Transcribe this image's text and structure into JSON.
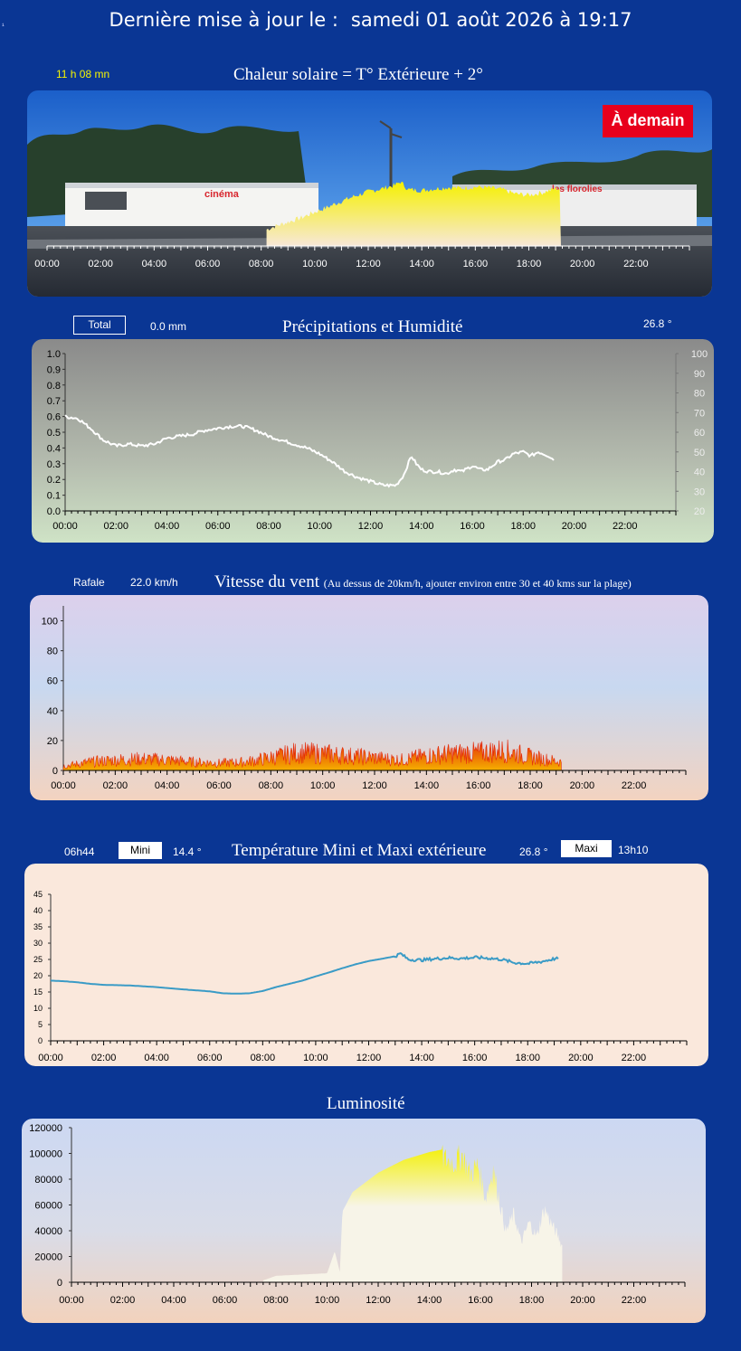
{
  "header": {
    "prefix": "Dernière mise à jour le :",
    "datetime": "samedi 01 août 2026 à 19:17"
  },
  "corner_mark": "¹",
  "hours": [
    "00:00",
    "02:00",
    "04:00",
    "06:00",
    "08:00",
    "10:00",
    "12:00",
    "14:00",
    "16:00",
    "18:00",
    "20:00",
    "22:00"
  ],
  "solar": {
    "title": "Chaleur solaire = T° Extérieure + 2°",
    "duration": "11 h 08 mn",
    "tomorrow_button": "À demain",
    "colors": {
      "fill_top": "#f5f000",
      "fill_bottom": "#f7e8d8",
      "sky": "#1f6fd6"
    }
  },
  "precip": {
    "title": "Précipitations et Humidité",
    "total_label": "Total",
    "total_value": "0.0 mm",
    "temp_value": "26.8 °",
    "chart_data": {
      "type": "line",
      "title": "Précipitations et Humidité",
      "y_left": {
        "min": 0,
        "max": 1,
        "step": 0.1,
        "ticks": [
          "0.0",
          "0.1",
          "0.2",
          "0.3",
          "0.4",
          "0.5",
          "0.6",
          "0.7",
          "0.8",
          "0.9",
          "1.0"
        ]
      },
      "y_right": {
        "min": 20,
        "max": 100,
        "step": 10,
        "ticks": [
          "20",
          "30",
          "40",
          "50",
          "60",
          "70",
          "80",
          "90",
          "100"
        ]
      },
      "series": [
        {
          "axis": "right",
          "x": [
            0,
            0.5,
            1,
            1.5,
            2,
            2.5,
            3,
            3.5,
            4,
            4.5,
            5,
            5.5,
            6,
            6.5,
            7,
            7.5,
            8,
            8.5,
            9,
            9.5,
            10,
            10.5,
            11,
            11.5,
            12,
            12.5,
            13,
            13.3,
            13.6,
            13.8,
            14,
            14.3,
            14.6,
            15,
            15.3,
            15.6,
            16,
            16.3,
            16.6,
            17,
            17.3,
            17.6,
            18,
            18.3,
            18.6,
            19,
            19.2
          ],
          "y": [
            68,
            67,
            62,
            56,
            53,
            54,
            53,
            54,
            57,
            58,
            59,
            61,
            62,
            63,
            63,
            61,
            58,
            56,
            54,
            52,
            49,
            45,
            40,
            37,
            35,
            33,
            33,
            38,
            48,
            44,
            41,
            40,
            40,
            39,
            41,
            40,
            43,
            41,
            41,
            45,
            46,
            49,
            50,
            48,
            50,
            48,
            46
          ]
        }
      ],
      "colors": {
        "line": "#ffffff",
        "bg_top": "#8a8a8a",
        "bg_bottom": "#cfe3c6"
      }
    }
  },
  "wind": {
    "title": "Vitesse du vent",
    "note": "(Au dessus de 20km/h, ajouter environ entre 30 et 40 kms sur la plage)",
    "gust_label": "Rafale",
    "gust_value": "22.0  km/h",
    "chart_data": {
      "type": "area",
      "y": {
        "min": 0,
        "max": 110,
        "ticks": [
          "0",
          "20",
          "40",
          "60",
          "80",
          "100"
        ]
      },
      "envelope": {
        "x": [
          0,
          1,
          2,
          3,
          4,
          5,
          6,
          7,
          8,
          9,
          10,
          11,
          12,
          13,
          14,
          15,
          16,
          17,
          18,
          19.2
        ],
        "y": [
          4,
          8,
          10,
          11,
          10,
          8,
          7,
          8,
          12,
          17,
          16,
          14,
          12,
          10,
          14,
          16,
          17,
          19,
          13,
          8
        ]
      },
      "colors": {
        "spike": "#e42a0a",
        "fill": "#f5b000",
        "bg_top": "#dcd0ec",
        "bg_mid": "#c8d8f0",
        "bg_bottom": "#f3d3c0"
      }
    }
  },
  "temp": {
    "title": "Température Mini et Maxi extérieure",
    "min_time": "06h44",
    "min_label": "Mini",
    "min_value": "14.4 °",
    "max_value": "26.8 °",
    "max_label": "Maxi",
    "max_time": "13h10",
    "chart_data": {
      "type": "line",
      "y": {
        "min": 0,
        "max": 45,
        "ticks": [
          "0",
          "5",
          "10",
          "15",
          "20",
          "25",
          "30",
          "35",
          "40",
          "45"
        ]
      },
      "series": [
        {
          "x": [
            0,
            0.5,
            1,
            1.5,
            2,
            3,
            4,
            5,
            6,
            6.5,
            7,
            7.5,
            8,
            8.5,
            9,
            9.5,
            10,
            10.5,
            11,
            11.5,
            12,
            12.5,
            13,
            13.2,
            13.5,
            14,
            14.5,
            15,
            15.5,
            16,
            16.5,
            17,
            17.5,
            18,
            18.5,
            19,
            19.2
          ],
          "y": [
            18.5,
            18.3,
            18,
            17.5,
            17.2,
            17,
            16.5,
            15.8,
            15.2,
            14.6,
            14.5,
            14.6,
            15.3,
            16.5,
            17.5,
            18.5,
            19.8,
            21,
            22.3,
            23.5,
            24.5,
            25.2,
            26,
            26.8,
            25,
            24.8,
            25.2,
            25.5,
            25.3,
            25.6,
            25.4,
            25,
            24,
            23.7,
            24.3,
            25.2,
            25.2
          ]
        }
      ],
      "colors": {
        "line": "#3a9bc6",
        "bg": "#fae8dc"
      }
    }
  },
  "lum": {
    "title": "Luminosité",
    "chart_data": {
      "type": "area",
      "y": {
        "min": 0,
        "max": 120000,
        "ticks": [
          "0",
          "20000",
          "40000",
          "60000",
          "80000",
          "100000",
          "120000"
        ]
      },
      "series": [
        {
          "x": [
            0,
            7.5,
            8,
            9,
            10,
            10.3,
            10.5,
            10.6,
            11,
            12,
            13,
            14,
            14.5,
            15,
            15.3,
            15.6,
            15.9,
            16.2,
            16.5,
            16.8,
            17,
            17.3,
            17.6,
            17.9,
            18.2,
            18.5,
            18.8,
            19,
            19.2
          ],
          "y": [
            0,
            1500,
            5000,
            6000,
            7000,
            24000,
            8000,
            55000,
            70000,
            85000,
            95000,
            101000,
            103000,
            100000,
            106000,
            90000,
            98000,
            70000,
            95000,
            62000,
            42000,
            57000,
            33000,
            50000,
            38000,
            62000,
            48000,
            40000,
            30000
          ]
        }
      ],
      "colors": {
        "fill_top": "#f3f000",
        "fill_bottom": "#f7f4e8",
        "bg_top": "#ccd8f2",
        "bg_bottom": "#f2d2bc"
      }
    }
  }
}
